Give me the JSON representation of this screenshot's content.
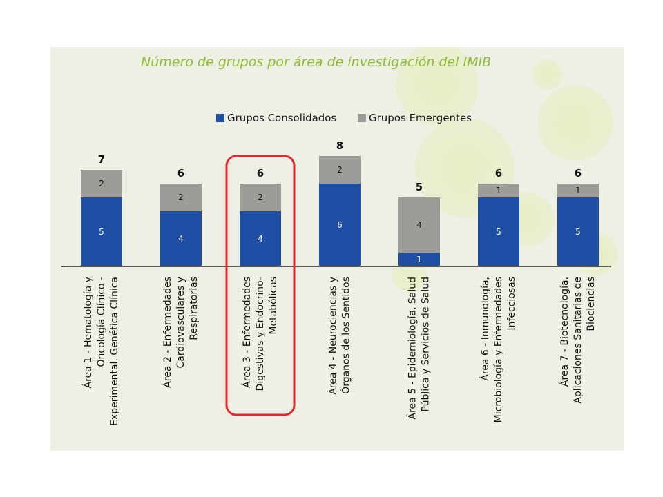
{
  "chart_data": {
    "type": "bar",
    "stacked": true,
    "title": "Número de grupos por área de investigación del IMIB",
    "legend_position": "top",
    "categories": [
      [
        "Área 1 - Hematología y",
        "Oncología Clínico -",
        "Experimental. Genética Clínica"
      ],
      [
        "Área 2 - Enfermedades",
        "Cardiovasculares y",
        "Respiratorias"
      ],
      [
        "Área 3 - Enfermedades",
        "Digestivas y Endocrino-",
        "Metabólicas"
      ],
      [
        "Área 4 - Neurociencias y",
        "Órganos de los Sentidos"
      ],
      [
        "Área 5 - Epidemiología, Salud",
        "Pública y Servicios de Salud"
      ],
      [
        "Área 6 - Inmunología,",
        "Microbiología y Enfermedades",
        "Infecciosas"
      ],
      [
        "Área 7 - Biotecnología.",
        "Aplicaciones Sanitarias de",
        "Biociencias"
      ]
    ],
    "series": [
      {
        "name": "Grupos Consolidados",
        "color": "#1f4fa5",
        "values": [
          5,
          4,
          4,
          6,
          1,
          5,
          5
        ]
      },
      {
        "name": "Grupos Emergentes",
        "color": "#9c9c98",
        "values": [
          2,
          2,
          2,
          2,
          4,
          1,
          1
        ]
      }
    ],
    "totals": [
      7,
      6,
      6,
      8,
      5,
      6,
      6
    ],
    "ylim": [
      0,
      8
    ],
    "grid": false,
    "highlighted_category_index": 2,
    "highlight_color": "#e8262b"
  }
}
